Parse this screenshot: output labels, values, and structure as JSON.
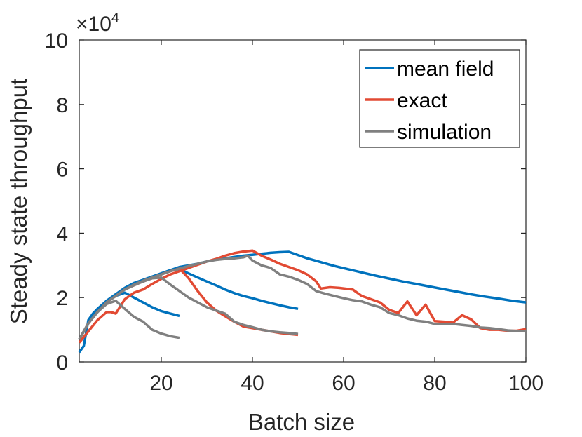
{
  "chart_data": {
    "type": "line",
    "xlabel": "Batch size",
    "ylabel": "Steady state throughput",
    "xlim": [
      2,
      100
    ],
    "ylim": [
      0,
      10
    ],
    "x_ticks": [
      20,
      40,
      60,
      80,
      100
    ],
    "x_tick_labels": [
      "20",
      "40",
      "60",
      "80",
      "100"
    ],
    "y_ticks": [
      0,
      2,
      4,
      6,
      8,
      10
    ],
    "y_tick_labels": [
      "0",
      "2",
      "4",
      "6",
      "8",
      "10"
    ],
    "y_multiplier": {
      "base": "×10",
      "exponent": "4"
    },
    "legend": {
      "position": "top-right",
      "entries": [
        "mean field",
        "exact",
        "simulation"
      ]
    },
    "colors": {
      "mean field": "#0072bd",
      "exact": "#e24a33",
      "simulation": "#808080",
      "axis": "#262626"
    },
    "series": [
      {
        "name": "mean field",
        "label": "mean field",
        "points": [
          [
            2,
            0.3
          ],
          [
            3,
            0.5
          ],
          [
            4,
            1.3
          ],
          [
            5,
            1.5
          ],
          [
            6,
            1.65
          ],
          [
            8,
            1.9
          ],
          [
            10,
            2.05
          ],
          [
            12,
            2.15
          ],
          [
            14,
            2.0
          ],
          [
            16,
            1.85
          ],
          [
            18,
            1.7
          ],
          [
            20,
            1.58
          ],
          [
            22,
            1.5
          ],
          [
            24,
            1.43
          ]
        ]
      },
      {
        "name": "mean field",
        "points": [
          [
            2,
            0.7
          ],
          [
            4,
            1.2
          ],
          [
            6,
            1.6
          ],
          [
            8,
            1.9
          ],
          [
            10,
            2.1
          ],
          [
            12,
            2.3
          ],
          [
            14,
            2.45
          ],
          [
            16,
            2.55
          ],
          [
            18,
            2.65
          ],
          [
            20,
            2.75
          ],
          [
            22,
            2.85
          ],
          [
            24,
            2.88
          ],
          [
            26,
            2.75
          ],
          [
            28,
            2.62
          ],
          [
            30,
            2.5
          ],
          [
            32,
            2.38
          ],
          [
            34,
            2.25
          ],
          [
            36,
            2.14
          ],
          [
            38,
            2.05
          ],
          [
            40,
            1.98
          ],
          [
            42,
            1.9
          ],
          [
            44,
            1.83
          ],
          [
            46,
            1.76
          ],
          [
            48,
            1.7
          ],
          [
            50,
            1.65
          ]
        ]
      },
      {
        "name": "mean field",
        "points": [
          [
            2,
            0.7
          ],
          [
            4,
            1.2
          ],
          [
            6,
            1.6
          ],
          [
            8,
            1.9
          ],
          [
            10,
            2.1
          ],
          [
            12,
            2.3
          ],
          [
            14,
            2.45
          ],
          [
            16,
            2.55
          ],
          [
            18,
            2.65
          ],
          [
            20,
            2.75
          ],
          [
            22,
            2.85
          ],
          [
            24,
            2.95
          ],
          [
            26,
            3.0
          ],
          [
            28,
            3.05
          ],
          [
            30,
            3.12
          ],
          [
            32,
            3.18
          ],
          [
            34,
            3.22
          ],
          [
            36,
            3.26
          ],
          [
            38,
            3.3
          ],
          [
            40,
            3.33
          ],
          [
            42,
            3.36
          ],
          [
            44,
            3.39
          ],
          [
            46,
            3.41
          ],
          [
            48,
            3.42
          ],
          [
            50,
            3.32
          ],
          [
            52,
            3.22
          ],
          [
            55,
            3.1
          ],
          [
            58,
            2.98
          ],
          [
            61,
            2.88
          ],
          [
            64,
            2.78
          ],
          [
            67,
            2.68
          ],
          [
            70,
            2.59
          ],
          [
            73,
            2.5
          ],
          [
            76,
            2.42
          ],
          [
            79,
            2.34
          ],
          [
            82,
            2.26
          ],
          [
            85,
            2.18
          ],
          [
            88,
            2.1
          ],
          [
            91,
            2.03
          ],
          [
            94,
            1.97
          ],
          [
            97,
            1.9
          ],
          [
            100,
            1.85
          ]
        ]
      },
      {
        "name": "exact",
        "label": "exact",
        "points": [
          [
            2,
            0.6
          ],
          [
            4,
            0.95
          ],
          [
            6,
            1.3
          ],
          [
            8,
            1.55
          ],
          [
            9,
            1.55
          ],
          [
            10,
            1.5
          ],
          [
            12,
            1.95
          ],
          [
            14,
            2.15
          ],
          [
            16,
            2.25
          ],
          [
            18,
            2.42
          ],
          [
            20,
            2.58
          ],
          [
            22,
            2.72
          ],
          [
            24,
            2.82
          ],
          [
            26,
            2.92
          ],
          [
            28,
            3.02
          ],
          [
            30,
            3.12
          ],
          [
            32,
            3.2
          ],
          [
            34,
            3.3
          ],
          [
            36,
            3.38
          ],
          [
            38,
            3.43
          ],
          [
            40,
            3.46
          ],
          [
            42,
            3.3
          ],
          [
            44,
            3.18
          ],
          [
            46,
            3.05
          ],
          [
            48,
            2.95
          ],
          [
            50,
            2.85
          ],
          [
            52,
            2.72
          ],
          [
            54,
            2.5
          ],
          [
            55,
            2.28
          ],
          [
            57,
            2.32
          ],
          [
            59,
            2.3
          ],
          [
            62,
            2.25
          ],
          [
            64,
            2.05
          ],
          [
            66,
            1.95
          ],
          [
            68,
            1.85
          ],
          [
            70,
            1.62
          ],
          [
            72,
            1.52
          ],
          [
            74,
            1.88
          ],
          [
            76,
            1.45
          ],
          [
            78,
            1.78
          ],
          [
            80,
            1.27
          ],
          [
            82,
            1.25
          ],
          [
            84,
            1.22
          ],
          [
            86,
            1.45
          ],
          [
            88,
            1.32
          ],
          [
            90,
            1.05
          ],
          [
            92,
            1.0
          ],
          [
            94,
            1.0
          ],
          [
            96,
            0.97
          ],
          [
            98,
            0.97
          ],
          [
            100,
            1.02
          ]
        ]
      },
      {
        "name": "exact",
        "points": [
          [
            2,
            0.7
          ],
          [
            4,
            1.2
          ],
          [
            6,
            1.55
          ],
          [
            8,
            1.85
          ],
          [
            10,
            2.05
          ],
          [
            12,
            2.25
          ],
          [
            14,
            2.38
          ],
          [
            16,
            2.5
          ],
          [
            18,
            2.6
          ],
          [
            20,
            2.72
          ],
          [
            22,
            2.82
          ],
          [
            24,
            2.9
          ],
          [
            26,
            2.6
          ],
          [
            28,
            2.2
          ],
          [
            30,
            1.85
          ],
          [
            32,
            1.6
          ],
          [
            34,
            1.42
          ],
          [
            36,
            1.25
          ],
          [
            38,
            1.1
          ],
          [
            40,
            1.05
          ],
          [
            42,
            1.0
          ],
          [
            44,
            0.95
          ],
          [
            46,
            0.9
          ],
          [
            48,
            0.87
          ],
          [
            50,
            0.84
          ]
        ]
      },
      {
        "name": "simulation",
        "label": "simulation",
        "points": [
          [
            2,
            0.7
          ],
          [
            4,
            1.2
          ],
          [
            6,
            1.55
          ],
          [
            8,
            1.8
          ],
          [
            10,
            1.9
          ],
          [
            12,
            1.65
          ],
          [
            14,
            1.4
          ],
          [
            16,
            1.25
          ],
          [
            18,
            1.0
          ],
          [
            20,
            0.88
          ],
          [
            22,
            0.8
          ],
          [
            24,
            0.75
          ]
        ]
      },
      {
        "name": "simulation",
        "points": [
          [
            2,
            0.7
          ],
          [
            4,
            1.2
          ],
          [
            6,
            1.55
          ],
          [
            8,
            1.85
          ],
          [
            10,
            2.05
          ],
          [
            12,
            2.25
          ],
          [
            14,
            2.38
          ],
          [
            16,
            2.5
          ],
          [
            18,
            2.6
          ],
          [
            20,
            2.62
          ],
          [
            22,
            2.4
          ],
          [
            24,
            2.2
          ],
          [
            26,
            2.0
          ],
          [
            28,
            1.85
          ],
          [
            30,
            1.7
          ],
          [
            32,
            1.6
          ],
          [
            34,
            1.5
          ],
          [
            36,
            1.25
          ],
          [
            38,
            1.15
          ],
          [
            40,
            1.08
          ],
          [
            42,
            1.0
          ],
          [
            44,
            0.95
          ],
          [
            46,
            0.92
          ],
          [
            48,
            0.9
          ],
          [
            50,
            0.87
          ]
        ]
      },
      {
        "name": "simulation",
        "points": [
          [
            2,
            0.7
          ],
          [
            4,
            1.2
          ],
          [
            6,
            1.55
          ],
          [
            8,
            1.85
          ],
          [
            10,
            2.05
          ],
          [
            12,
            2.25
          ],
          [
            14,
            2.4
          ],
          [
            16,
            2.52
          ],
          [
            18,
            2.62
          ],
          [
            20,
            2.72
          ],
          [
            22,
            2.82
          ],
          [
            24,
            2.9
          ],
          [
            26,
            2.98
          ],
          [
            28,
            3.05
          ],
          [
            30,
            3.12
          ],
          [
            32,
            3.17
          ],
          [
            34,
            3.2
          ],
          [
            36,
            3.22
          ],
          [
            38,
            3.25
          ],
          [
            39,
            3.3
          ],
          [
            40,
            3.15
          ],
          [
            42,
            3.0
          ],
          [
            44,
            2.92
          ],
          [
            46,
            2.72
          ],
          [
            48,
            2.65
          ],
          [
            50,
            2.55
          ],
          [
            52,
            2.42
          ],
          [
            54,
            2.2
          ],
          [
            56,
            2.12
          ],
          [
            58,
            2.05
          ],
          [
            60,
            1.98
          ],
          [
            62,
            1.92
          ],
          [
            64,
            1.88
          ],
          [
            66,
            1.78
          ],
          [
            68,
            1.7
          ],
          [
            70,
            1.52
          ],
          [
            72,
            1.45
          ],
          [
            74,
            1.35
          ],
          [
            76,
            1.28
          ],
          [
            78,
            1.25
          ],
          [
            80,
            1.18
          ],
          [
            82,
            1.17
          ],
          [
            84,
            1.18
          ],
          [
            86,
            1.15
          ],
          [
            88,
            1.12
          ],
          [
            90,
            1.07
          ],
          [
            92,
            1.05
          ],
          [
            94,
            1.02
          ],
          [
            96,
            0.98
          ],
          [
            98,
            0.96
          ],
          [
            100,
            0.95
          ]
        ]
      }
    ]
  }
}
